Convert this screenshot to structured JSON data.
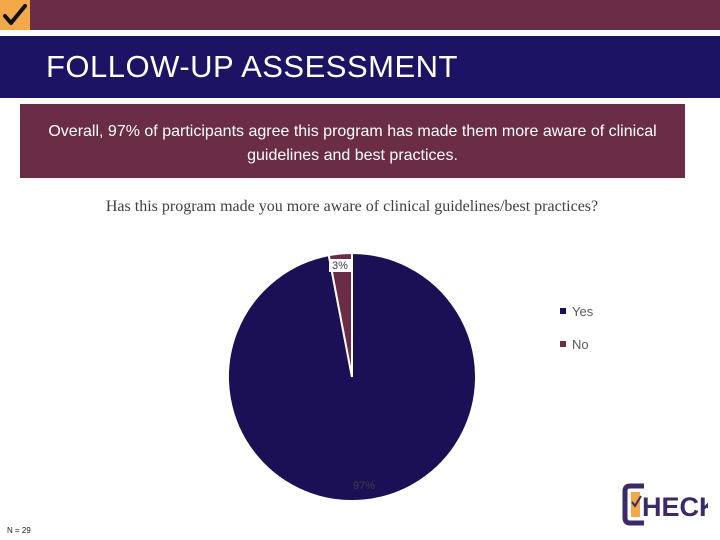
{
  "header": {
    "title": "FOLLOW-UP ASSESSMENT",
    "accent_color": "#f3a94a",
    "bar_color": "#6b2d45",
    "band_color": "#1b1464"
  },
  "summary": {
    "text": "Overall, 97% of participants agree this program has made them more aware of clinical guidelines and best practices."
  },
  "footer": {
    "sample_size": "N = 29",
    "logo_text": "HECK",
    "check_icon": "check-icon"
  },
  "chart_data": {
    "type": "pie",
    "title": "Has this program made you more aware of clinical guidelines/best practices?",
    "categories": [
      "Yes",
      "No"
    ],
    "values": [
      97,
      3
    ],
    "labels": [
      "97%",
      "3%"
    ],
    "colors": [
      "#1b0f55",
      "#6b2d45"
    ],
    "legend_position": "right"
  }
}
